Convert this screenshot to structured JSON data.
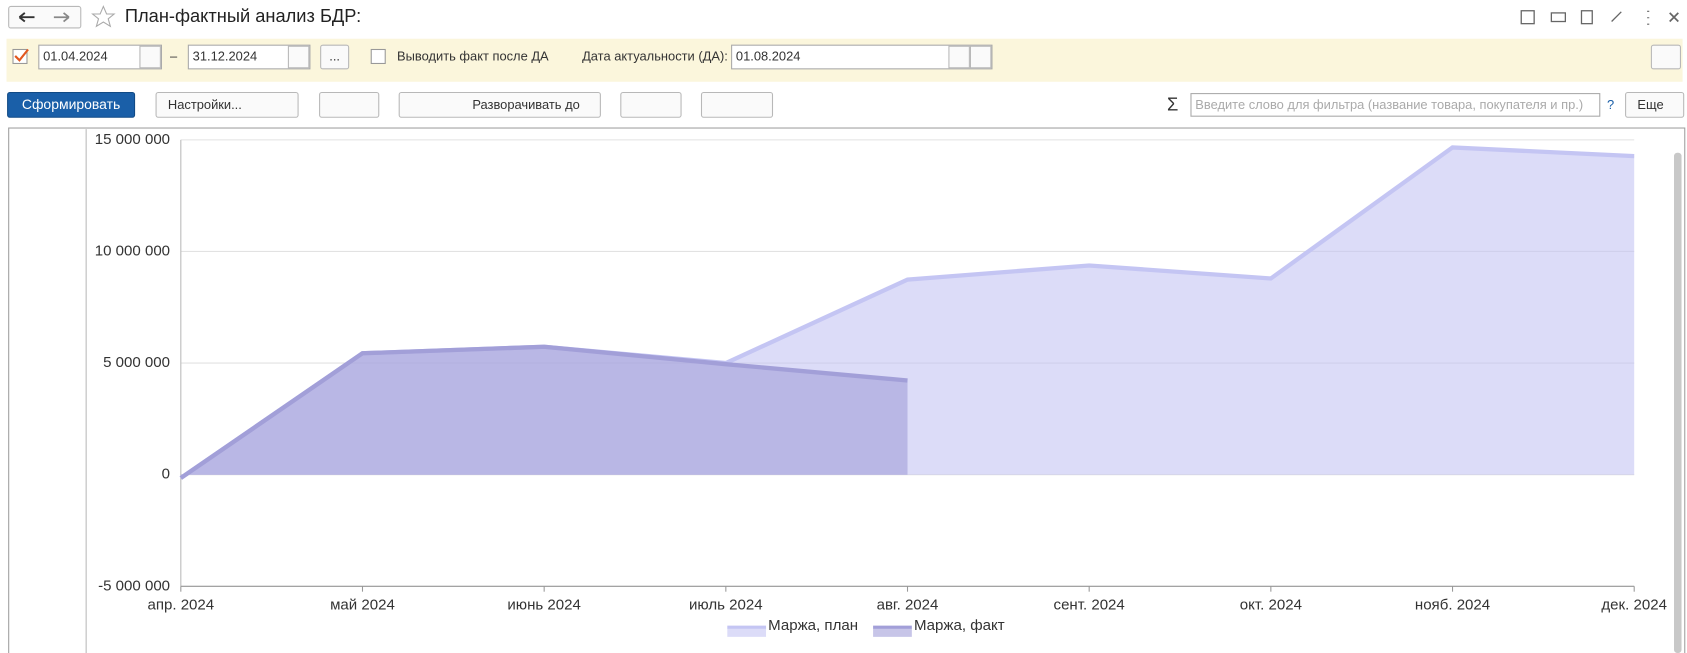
{
  "window": {
    "title": "План-фактный анализ БДР:"
  },
  "params": {
    "date_from": "01.04.2024",
    "dash": "–",
    "date_to": "31.12.2024",
    "period_button": "...",
    "show_fact_label": "Выводить факт после ДА",
    "actual_date_label": "Дата актуальности (ДА):",
    "actual_date": "01.08.2024"
  },
  "toolbar": {
    "generate": "Сформировать",
    "settings": "Настройки...",
    "expand_to": "Разворачивать до",
    "sigma": "Σ",
    "search_placeholder": "Введите слово для фильтра (название товара, покупателя и пр.)",
    "help": "?",
    "more": "Еще"
  },
  "chart_data": {
    "type": "area",
    "categories": [
      "апр. 2024",
      "май 2024",
      "июнь 2024",
      "июль 2024",
      "авг. 2024",
      "сент. 2024",
      "окт. 2024",
      "нояб. 2024",
      "дек. 2024"
    ],
    "series": [
      {
        "name": "Маржа, план",
        "color": "#c4c5f3",
        "values": [
          -150000,
          5440000,
          5730000,
          5000000,
          8740000,
          9370000,
          8790000,
          14660000,
          14270000
        ]
      },
      {
        "name": "Маржа, факт",
        "color": "#a29fd8",
        "values": [
          -150000,
          5440000,
          5730000,
          4950000,
          4220000,
          null,
          null,
          null,
          null
        ]
      }
    ],
    "ylim": [
      -5000000,
      15000000
    ],
    "yticks": [
      {
        "value": -5000000,
        "label": "-5 000 000"
      },
      0,
      {
        "value": 5000000,
        "label": "5 000 000"
      },
      {
        "value": 10000000,
        "label": "10 000 000"
      },
      {
        "value": 15000000,
        "label": "15 000 000"
      }
    ],
    "grid": true,
    "legend": "bottom"
  }
}
